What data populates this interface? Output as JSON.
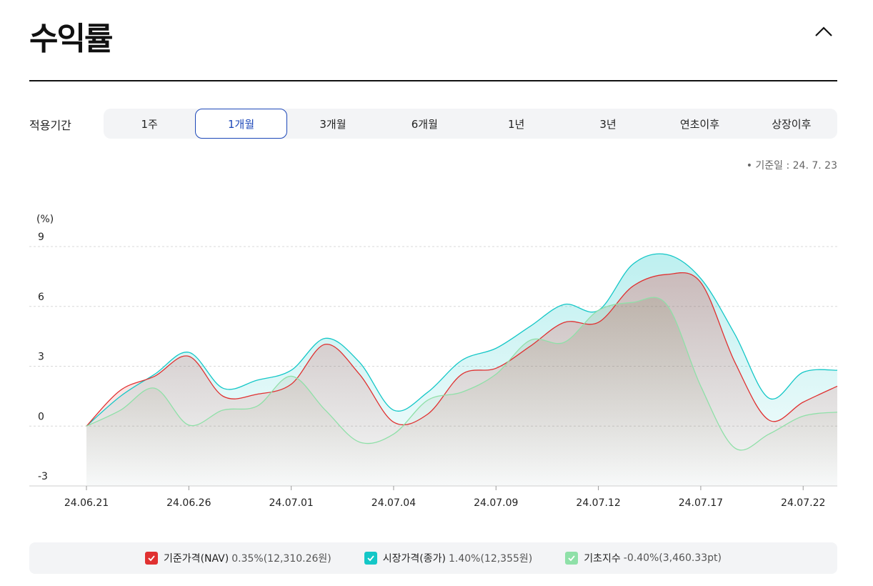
{
  "header": {
    "title": "수익률"
  },
  "period": {
    "label": "적용기간",
    "tabs": [
      "1주",
      "1개월",
      "3개월",
      "6개월",
      "1년",
      "3년",
      "연초이후",
      "상장이후"
    ],
    "active_index": 1
  },
  "ref_date": "• 기준일 : 24. 7. 23",
  "colors": {
    "nav": "#e03131",
    "market": "#14c7c7",
    "index": "#8fe0a8",
    "active_tab": "#1c47b8"
  },
  "chart_data": {
    "type": "area",
    "ylabel": "(%)",
    "ylim": [
      -3,
      9
    ],
    "yticks": [
      9,
      6,
      3,
      0,
      -3
    ],
    "x_ticks": [
      "24.06.21",
      "24.06.26",
      "24.07.01",
      "24.07.04",
      "24.07.09",
      "24.07.12",
      "24.07.17",
      "24.07.22"
    ],
    "x": [
      "24.06.21",
      "24.06.24",
      "24.06.25",
      "24.06.26",
      "24.06.27",
      "24.06.28",
      "24.07.01",
      "24.07.02",
      "24.07.03",
      "24.07.04",
      "24.07.05",
      "24.07.08",
      "24.07.09",
      "24.07.10",
      "24.07.11",
      "24.07.12",
      "24.07.15",
      "24.07.16",
      "24.07.17",
      "24.07.18",
      "24.07.19",
      "24.07.22",
      "24.07.23"
    ],
    "grid": true,
    "series": [
      {
        "name": "기준가격(NAV)",
        "values": [
          0,
          1.8,
          2.5,
          3.5,
          1.5,
          1.6,
          2.1,
          4.1,
          2.6,
          0.2,
          0.6,
          2.6,
          2.9,
          4.0,
          5.2,
          5.2,
          7.0,
          7.6,
          7.2,
          3.2,
          0.3,
          1.2,
          2.0
        ]
      },
      {
        "name": "시장가격(종가)",
        "values": [
          0,
          1.5,
          2.6,
          3.7,
          1.9,
          2.3,
          2.8,
          4.4,
          3.2,
          0.8,
          1.7,
          3.3,
          3.9,
          5.0,
          6.1,
          5.8,
          8.1,
          8.6,
          7.4,
          4.6,
          1.4,
          2.7,
          2.8
        ]
      },
      {
        "name": "기초지수",
        "values": [
          0,
          0.8,
          1.9,
          0.05,
          0.8,
          1.0,
          2.5,
          0.8,
          -0.8,
          -0.4,
          1.3,
          1.7,
          2.6,
          4.3,
          4.2,
          5.8,
          6.2,
          6.1,
          2.0,
          -1.1,
          -0.4,
          0.5,
          0.7
        ]
      }
    ]
  },
  "legend": [
    {
      "name": "기준가격(NAV)",
      "value": "0.35%(12,310.26원)"
    },
    {
      "name": "시장가격(종가)",
      "value": "1.40%(12,355원)"
    },
    {
      "name": "기초지수",
      "value": "-0.40%(3,460.33pt)"
    }
  ]
}
